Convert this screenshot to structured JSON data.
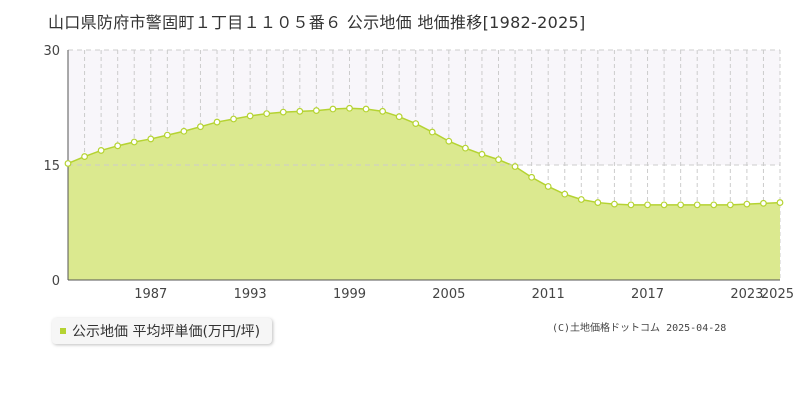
{
  "title": "山口県防府市警固町１丁目１１０５番６ 公示地価 地価推移[1982-2025]",
  "legend": {
    "label": "公示地価 平均坪単価(万円/坪)"
  },
  "credit": "(C)土地価格ドットコム 2025-04-28",
  "colors": {
    "fill": "#dbe98f",
    "line": "#b5d332",
    "marker_fill": "#ffffff",
    "grid": "#cccccc",
    "axis": "#555555",
    "upper_band": "#f8f6fa"
  },
  "chart_data": {
    "type": "area",
    "title": "山口県防府市警固町１丁目１１０５番６ 公示地価 地価推移[1982-2025]",
    "xlabel": "",
    "ylabel": "",
    "ylim": [
      0,
      30
    ],
    "xlim": [
      1982,
      2025
    ],
    "yticks": [
      "0",
      "15",
      "30"
    ],
    "xticks": [
      "1987",
      "1993",
      "1999",
      "2005",
      "2011",
      "2017",
      "2023",
      "2025"
    ],
    "grid": true,
    "legend_position": "bottom-left",
    "series": [
      {
        "name": "公示地価 平均坪単価(万円/坪)",
        "x": [
          1982,
          1983,
          1984,
          1985,
          1986,
          1987,
          1988,
          1989,
          1990,
          1991,
          1992,
          1993,
          1994,
          1995,
          1996,
          1997,
          1998,
          1999,
          2000,
          2001,
          2002,
          2003,
          2004,
          2005,
          2006,
          2007,
          2008,
          2009,
          2010,
          2011,
          2012,
          2013,
          2014,
          2015,
          2016,
          2017,
          2018,
          2019,
          2020,
          2021,
          2022,
          2023,
          2024,
          2025
        ],
        "values": [
          15.2,
          16.1,
          16.9,
          17.5,
          18.0,
          18.4,
          18.9,
          19.4,
          20.0,
          20.6,
          21.0,
          21.4,
          21.7,
          21.9,
          22.0,
          22.1,
          22.3,
          22.4,
          22.3,
          22.0,
          21.3,
          20.4,
          19.3,
          18.1,
          17.2,
          16.4,
          15.7,
          14.8,
          13.4,
          12.2,
          11.2,
          10.5,
          10.1,
          9.9,
          9.8,
          9.8,
          9.8,
          9.8,
          9.8,
          9.8,
          9.8,
          9.9,
          10.0,
          10.1
        ]
      }
    ]
  }
}
